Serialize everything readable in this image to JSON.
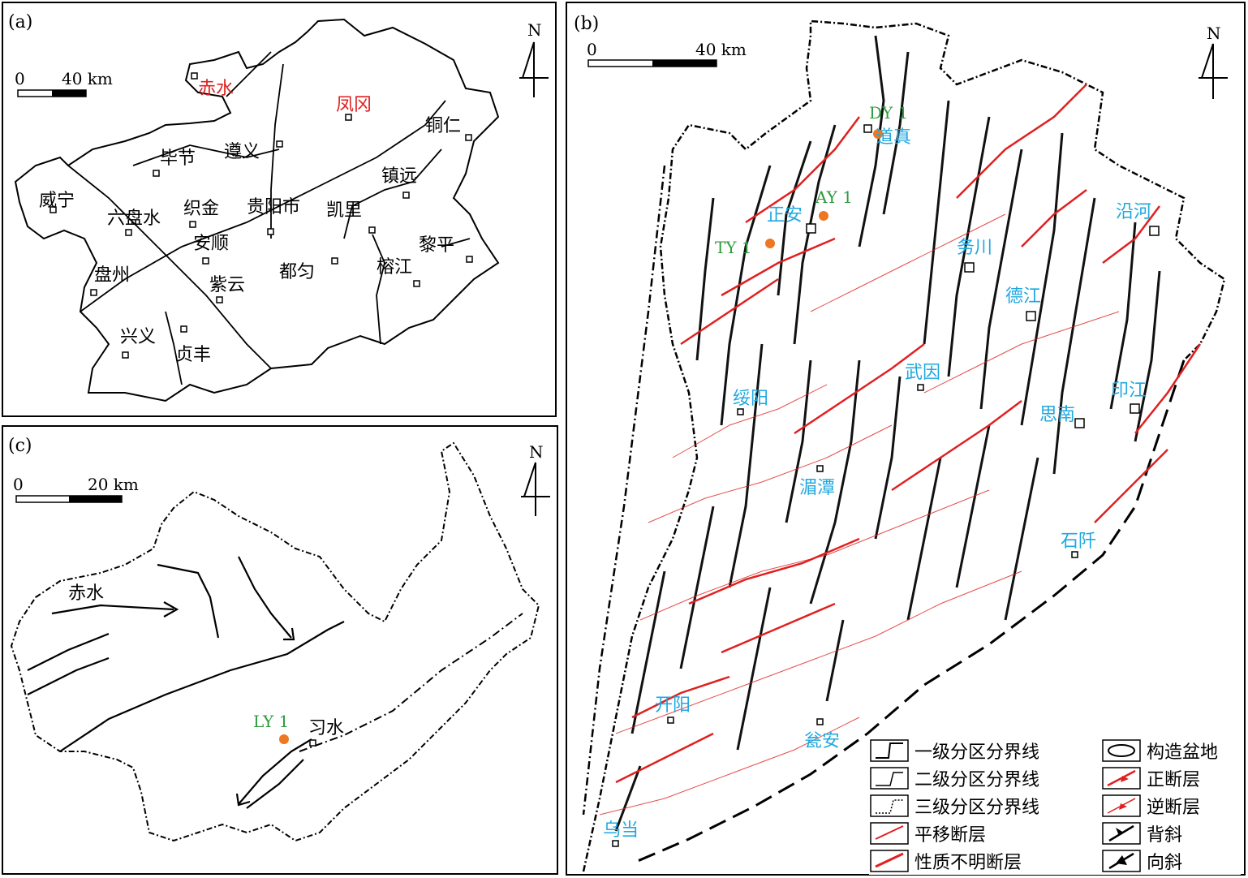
{
  "panel_a": {
    "letter": "(a)",
    "scale": {
      "zero": "0",
      "dist": "40 km"
    },
    "north": "N",
    "cities_black": [
      "毕节",
      "遵义",
      "铜仁",
      "镇远",
      "威宁",
      "六盘水",
      "织金",
      "贵阳市",
      "凯里",
      "黎平",
      "安顺",
      "都匀",
      "榕江",
      "盘州",
      "紫云",
      "兴义",
      "贞丰"
    ],
    "cities_red": [
      "赤水",
      "凤冈"
    ]
  },
  "panel_b": {
    "letter": "(b)",
    "scale": {
      "zero": "0",
      "dist": "40 km"
    },
    "north": "N",
    "wells": [
      "DY 1",
      "AY 1",
      "TY 1"
    ],
    "cities": [
      "道真",
      "正安",
      "务川",
      "沿河",
      "德江",
      "绥阳",
      "武因",
      "思南",
      "印江",
      "湄潭",
      "石阡",
      "开阳",
      "瓮安",
      "乌当"
    ],
    "legend": [
      {
        "label": "一级分区分界线",
        "icon": "boundary-level1-icon"
      },
      {
        "label": "构造盆地",
        "icon": "tectonic-basin-icon"
      },
      {
        "label": "二级分区分界线",
        "icon": "boundary-level2-icon"
      },
      {
        "label": "正断层",
        "icon": "normal-fault-icon"
      },
      {
        "label": "三级分区分界线",
        "icon": "boundary-level3-icon"
      },
      {
        "label": "逆断层",
        "icon": "reverse-fault-icon"
      },
      {
        "label": "平移断层",
        "icon": "strike-slip-fault-icon"
      },
      {
        "label": "背斜",
        "icon": "anticline-icon"
      },
      {
        "label": "性质不明断层",
        "icon": "unknown-fault-icon"
      },
      {
        "label": "向斜",
        "icon": "syncline-icon"
      }
    ]
  },
  "panel_c": {
    "letter": "(c)",
    "scale": {
      "zero": "0",
      "dist": "20 km"
    },
    "north": "N",
    "cities": [
      "赤水",
      "习水"
    ],
    "wells": [
      "LY 1"
    ]
  },
  "colors": {
    "red": "#e02020",
    "blue": "#1ea8e0",
    "green": "#2e9b3c",
    "orange": "#ee7722"
  }
}
